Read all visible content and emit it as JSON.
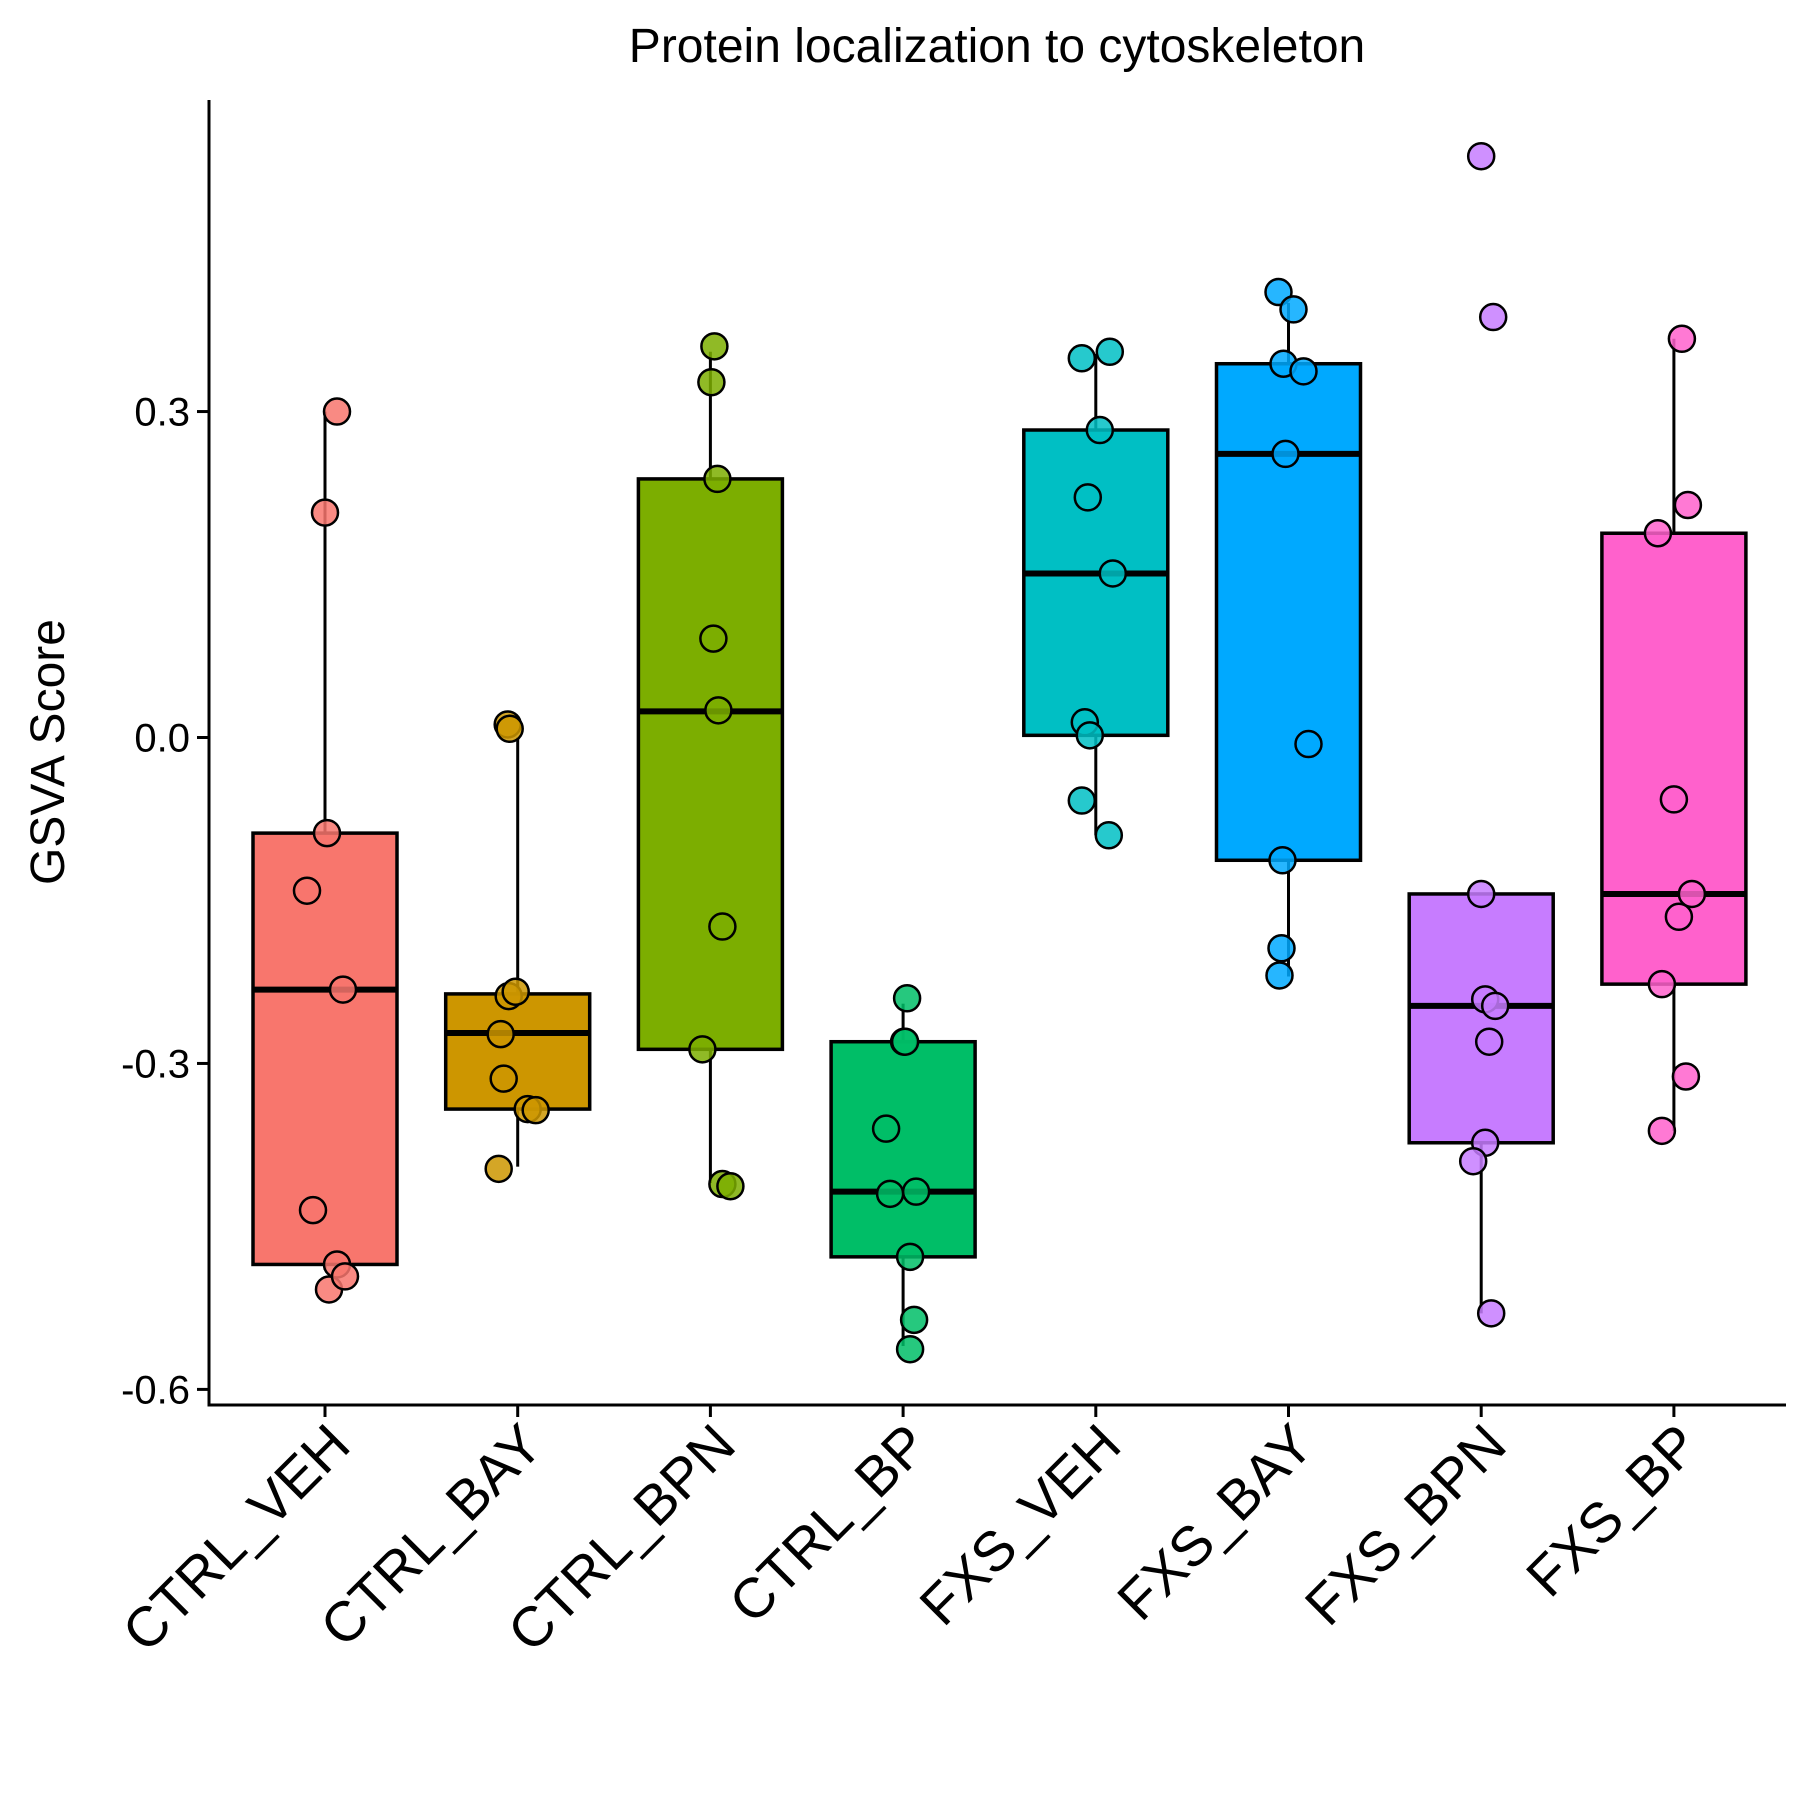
{
  "chart_data": {
    "type": "box",
    "title": "Protein localization to cytoskeleton",
    "xlabel": "",
    "ylabel": "GSVA Score",
    "ylim": [
      -0.62,
      0.59
    ],
    "yticks": [
      -0.6,
      -0.3,
      0.0,
      0.3
    ],
    "ytick_labels": [
      "-0.6",
      "-0.3",
      "0.0",
      "0.3"
    ],
    "grid": false,
    "legend": "none",
    "categories": [
      "CTRL_VEH",
      "CTRL_BAY",
      "CTRL_BPN",
      "CTRL_BP",
      "FXS_VEH",
      "FXS_BAY",
      "FXS_BPN",
      "FXS_BP"
    ],
    "colors": [
      "#F8766D",
      "#CD9600",
      "#7CAE00",
      "#00BE67",
      "#00BFC4",
      "#00A9FF",
      "#C77CFF",
      "#FF61CC"
    ],
    "boxes": [
      {
        "min": -0.49,
        "q1": -0.485,
        "median": -0.232,
        "q3": -0.088,
        "max": 0.3
      },
      {
        "min": -0.395,
        "q1": -0.342,
        "median": -0.272,
        "q3": -0.236,
        "max": 0.0
      },
      {
        "min": -0.41,
        "q1": -0.287,
        "median": 0.024,
        "q3": 0.238,
        "max": 0.355
      },
      {
        "min": -0.56,
        "q1": -0.478,
        "median": -0.418,
        "q3": -0.28,
        "max": -0.245
      },
      {
        "min": -0.09,
        "q1": 0.002,
        "median": 0.151,
        "q3": 0.283,
        "max": 0.353
      },
      {
        "min": -0.22,
        "q1": -0.113,
        "median": 0.261,
        "q3": 0.344,
        "max": 0.4
      },
      {
        "min": -0.53,
        "q1": -0.373,
        "median": -0.247,
        "q3": -0.144,
        "max": -0.144
      },
      {
        "min": -0.362,
        "q1": -0.227,
        "median": -0.144,
        "q3": 0.188,
        "max": 0.367
      }
    ],
    "points": [
      [
        {
          "x": 0.12,
          "y": 0.3
        },
        {
          "x": 0.0,
          "y": 0.207
        },
        {
          "x": 0.02,
          "y": -0.088
        },
        {
          "x": -0.18,
          "y": -0.141
        },
        {
          "x": 0.18,
          "y": -0.232
        },
        {
          "x": -0.12,
          "y": -0.435
        },
        {
          "x": 0.12,
          "y": -0.485
        },
        {
          "x": 0.04,
          "y": -0.508
        },
        {
          "x": 0.2,
          "y": -0.496
        }
      ],
      [
        {
          "x": -0.1,
          "y": 0.012
        },
        {
          "x": -0.08,
          "y": 0.008
        },
        {
          "x": -0.09,
          "y": -0.238
        },
        {
          "x": -0.02,
          "y": -0.234
        },
        {
          "x": -0.17,
          "y": -0.273
        },
        {
          "x": -0.14,
          "y": -0.314
        },
        {
          "x": 0.1,
          "y": -0.342
        },
        {
          "x": 0.18,
          "y": -0.343
        },
        {
          "x": -0.19,
          "y": -0.397
        }
      ],
      [
        {
          "x": 0.04,
          "y": 0.36
        },
        {
          "x": 0.01,
          "y": 0.327
        },
        {
          "x": 0.07,
          "y": 0.238
        },
        {
          "x": 0.03,
          "y": 0.091
        },
        {
          "x": 0.08,
          "y": 0.025
        },
        {
          "x": 0.12,
          "y": -0.174
        },
        {
          "x": -0.08,
          "y": -0.287
        },
        {
          "x": 0.12,
          "y": -0.411
        },
        {
          "x": 0.2,
          "y": -0.413
        }
      ],
      [
        {
          "x": 0.04,
          "y": -0.24
        },
        {
          "x": 0.01,
          "y": -0.28
        },
        {
          "x": 0.02,
          "y": -0.28
        },
        {
          "x": -0.17,
          "y": -0.36
        },
        {
          "x": -0.13,
          "y": -0.42
        },
        {
          "x": 0.13,
          "y": -0.418
        },
        {
          "x": 0.07,
          "y": -0.478
        },
        {
          "x": 0.11,
          "y": -0.536
        },
        {
          "x": 0.07,
          "y": -0.563
        }
      ],
      [
        {
          "x": -0.14,
          "y": 0.349
        },
        {
          "x": 0.14,
          "y": 0.355
        },
        {
          "x": 0.04,
          "y": 0.283
        },
        {
          "x": -0.08,
          "y": 0.221
        },
        {
          "x": 0.17,
          "y": 0.151
        },
        {
          "x": -0.11,
          "y": 0.014
        },
        {
          "x": -0.06,
          "y": 0.002
        },
        {
          "x": -0.14,
          "y": -0.058
        },
        {
          "x": 0.13,
          "y": -0.09
        }
      ],
      [
        {
          "x": -0.1,
          "y": 0.41
        },
        {
          "x": 0.05,
          "y": 0.394
        },
        {
          "x": -0.05,
          "y": 0.344
        },
        {
          "x": 0.15,
          "y": 0.337
        },
        {
          "x": -0.03,
          "y": 0.261
        },
        {
          "x": 0.2,
          "y": -0.006
        },
        {
          "x": -0.06,
          "y": -0.113
        },
        {
          "x": -0.07,
          "y": -0.194
        },
        {
          "x": -0.09,
          "y": -0.219
        }
      ],
      [
        {
          "x": 0.0,
          "y": 0.535
        },
        {
          "x": 0.12,
          "y": 0.387
        },
        {
          "x": 0.0,
          "y": -0.144
        },
        {
          "x": 0.04,
          "y": -0.241
        },
        {
          "x": 0.14,
          "y": -0.247
        },
        {
          "x": 0.08,
          "y": -0.28
        },
        {
          "x": 0.04,
          "y": -0.373
        },
        {
          "x": -0.08,
          "y": -0.39
        },
        {
          "x": 0.1,
          "y": -0.53
        }
      ],
      [
        {
          "x": 0.08,
          "y": 0.367
        },
        {
          "x": 0.14,
          "y": 0.214
        },
        {
          "x": -0.16,
          "y": 0.188
        },
        {
          "x": 0.0,
          "y": -0.057
        },
        {
          "x": 0.18,
          "y": -0.144
        },
        {
          "x": 0.05,
          "y": -0.165
        },
        {
          "x": -0.12,
          "y": -0.227
        },
        {
          "x": 0.12,
          "y": -0.312
        },
        {
          "x": -0.12,
          "y": -0.362
        }
      ]
    ]
  }
}
